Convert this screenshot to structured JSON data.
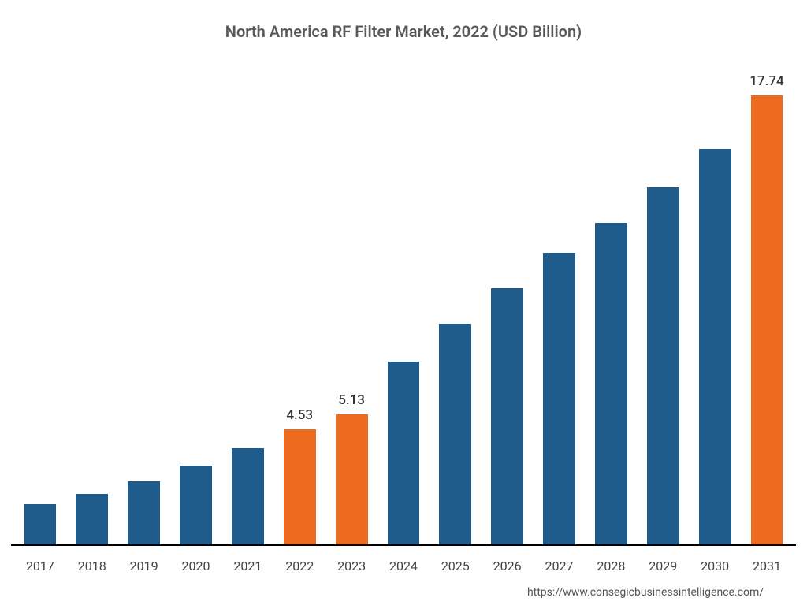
{
  "chart": {
    "type": "bar",
    "title": "North America RF Filter Market, 2022 (USD Billion)",
    "title_fontsize": 20,
    "title_color": "#5a5a5a",
    "background_color": "#ffffff",
    "axis_color": "#000000",
    "categories": [
      "2017",
      "2018",
      "2019",
      "2020",
      "2021",
      "2022",
      "2023",
      "2024",
      "2025",
      "2026",
      "2027",
      "2028",
      "2029",
      "2030",
      "2031"
    ],
    "values": [
      1.6,
      2.0,
      2.5,
      3.1,
      3.8,
      4.53,
      5.13,
      7.2,
      8.7,
      10.1,
      11.5,
      12.7,
      14.1,
      15.6,
      17.74
    ],
    "data_labels": [
      "",
      "",
      "",
      "",
      "",
      "4.53",
      "5.13",
      "",
      "",
      "",
      "",
      "",
      "",
      "",
      "17.74"
    ],
    "bar_colors": [
      "#1f5c8b",
      "#1f5c8b",
      "#1f5c8b",
      "#1f5c8b",
      "#1f5c8b",
      "#ec6b1f",
      "#ec6b1f",
      "#1f5c8b",
      "#1f5c8b",
      "#1f5c8b",
      "#1f5c8b",
      "#1f5c8b",
      "#1f5c8b",
      "#1f5c8b",
      "#ec6b1f"
    ],
    "ylim": [
      0,
      19
    ],
    "bar_width_pct": 62,
    "x_tick_fontsize": 16,
    "x_tick_color": "#444444",
    "data_label_fontsize": 17,
    "data_label_color": "#333333"
  },
  "source_text": "https://www.consegicbusinessintelligence.com/",
  "source_fontsize": 14,
  "source_color": "#555555"
}
